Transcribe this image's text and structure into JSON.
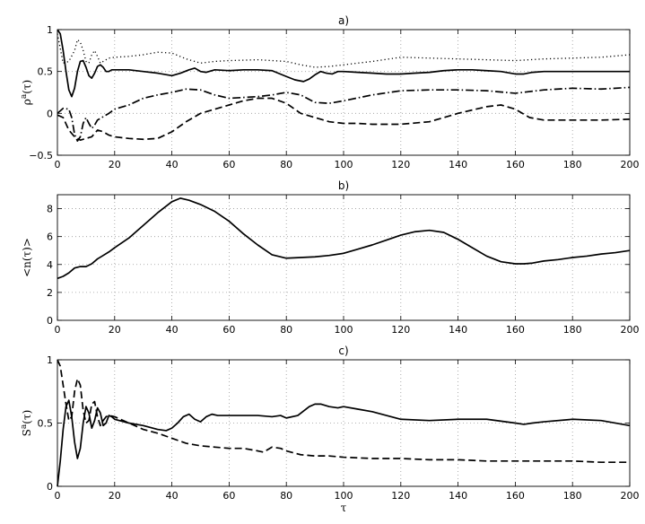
{
  "chart_data": [
    {
      "type": "line",
      "title": "a)",
      "xlabel": "",
      "ylabel_base": "ρ",
      "ylabel_sup": "a",
      "ylabel_tail": "(τ)",
      "xlim": [
        0,
        200
      ],
      "ylim": [
        -0.5,
        1
      ],
      "xticks": [
        0,
        20,
        40,
        60,
        80,
        100,
        120,
        140,
        160,
        180,
        200
      ],
      "yticks": [
        -0.5,
        0,
        0.5,
        1
      ],
      "ytick_labels": [
        "−0.5",
        "0",
        "0.5",
        "1"
      ],
      "grid": true,
      "series": [
        {
          "style": "solid",
          "x": [
            0,
            1,
            2,
            3,
            4,
            5,
            6,
            7,
            8,
            9,
            10,
            11,
            12,
            13,
            14,
            15,
            16,
            17,
            18,
            19,
            20,
            25,
            30,
            35,
            40,
            43,
            46,
            48,
            50,
            52,
            55,
            60,
            65,
            70,
            75,
            80,
            83,
            86,
            88,
            90,
            92,
            94,
            96,
            98,
            100,
            105,
            110,
            115,
            120,
            125,
            130,
            135,
            140,
            145,
            150,
            155,
            160,
            163,
            166,
            170,
            180,
            190,
            200
          ],
          "y": [
            1.0,
            0.95,
            0.75,
            0.5,
            0.28,
            0.2,
            0.3,
            0.5,
            0.62,
            0.63,
            0.55,
            0.45,
            0.42,
            0.48,
            0.56,
            0.58,
            0.55,
            0.5,
            0.5,
            0.52,
            0.52,
            0.52,
            0.5,
            0.48,
            0.45,
            0.48,
            0.52,
            0.54,
            0.5,
            0.49,
            0.52,
            0.51,
            0.52,
            0.52,
            0.51,
            0.44,
            0.4,
            0.38,
            0.41,
            0.46,
            0.5,
            0.48,
            0.47,
            0.5,
            0.5,
            0.49,
            0.48,
            0.47,
            0.47,
            0.48,
            0.49,
            0.51,
            0.52,
            0.52,
            0.51,
            0.5,
            0.47,
            0.47,
            0.49,
            0.5,
            0.5,
            0.5,
            0.5
          ]
        },
        {
          "style": "dotted",
          "x": [
            0,
            2,
            4,
            6,
            7,
            8,
            9,
            10,
            11,
            12,
            13,
            14,
            15,
            16,
            18,
            20,
            25,
            30,
            35,
            40,
            45,
            50,
            55,
            60,
            70,
            80,
            85,
            90,
            95,
            100,
            110,
            120,
            130,
            140,
            150,
            160,
            170,
            180,
            190,
            200
          ],
          "y": [
            0.95,
            0.6,
            0.62,
            0.75,
            0.88,
            0.85,
            0.75,
            0.62,
            0.6,
            0.7,
            0.75,
            0.68,
            0.6,
            0.62,
            0.66,
            0.67,
            0.68,
            0.7,
            0.73,
            0.72,
            0.65,
            0.6,
            0.62,
            0.63,
            0.64,
            0.62,
            0.58,
            0.55,
            0.56,
            0.58,
            0.62,
            0.67,
            0.66,
            0.65,
            0.64,
            0.63,
            0.65,
            0.66,
            0.67,
            0.7
          ]
        },
        {
          "style": "dashdot",
          "x": [
            0,
            2,
            4,
            5,
            6,
            7,
            8,
            9,
            10,
            11,
            12,
            13,
            14,
            15,
            16,
            18,
            20,
            25,
            30,
            35,
            40,
            45,
            50,
            55,
            60,
            65,
            70,
            75,
            80,
            85,
            90,
            95,
            100,
            110,
            120,
            130,
            140,
            150,
            160,
            170,
            180,
            190,
            200
          ],
          "y": [
            0.0,
            0.06,
            0.05,
            -0.05,
            -0.25,
            -0.33,
            -0.28,
            -0.12,
            -0.05,
            -0.12,
            -0.18,
            -0.14,
            -0.08,
            -0.06,
            -0.04,
            0.0,
            0.05,
            0.1,
            0.18,
            0.22,
            0.25,
            0.29,
            0.28,
            0.22,
            0.18,
            0.19,
            0.2,
            0.22,
            0.25,
            0.22,
            0.13,
            0.12,
            0.15,
            0.22,
            0.27,
            0.28,
            0.28,
            0.27,
            0.24,
            0.28,
            0.3,
            0.29,
            0.31
          ]
        },
        {
          "style": "dashed",
          "x": [
            0,
            2,
            4,
            6,
            8,
            10,
            12,
            14,
            16,
            18,
            20,
            25,
            30,
            35,
            40,
            45,
            50,
            55,
            60,
            65,
            70,
            75,
            80,
            85,
            90,
            95,
            100,
            105,
            110,
            120,
            130,
            140,
            150,
            155,
            160,
            165,
            170,
            180,
            190,
            200
          ],
          "y": [
            -0.02,
            -0.05,
            -0.2,
            -0.28,
            -0.32,
            -0.3,
            -0.28,
            -0.2,
            -0.22,
            -0.26,
            -0.28,
            -0.3,
            -0.31,
            -0.3,
            -0.22,
            -0.1,
            0.0,
            0.05,
            0.1,
            0.15,
            0.18,
            0.18,
            0.12,
            0.0,
            -0.05,
            -0.1,
            -0.12,
            -0.12,
            -0.13,
            -0.13,
            -0.1,
            0.0,
            0.08,
            0.1,
            0.05,
            -0.05,
            -0.08,
            -0.08,
            -0.08,
            -0.07
          ]
        }
      ]
    },
    {
      "type": "line",
      "title": "b)",
      "xlabel": "",
      "ylabel_base": "<n(τ)>",
      "ylabel_sup": "",
      "ylabel_tail": "",
      "xlim": [
        0,
        200
      ],
      "ylim": [
        0,
        9
      ],
      "xticks": [
        0,
        20,
        40,
        60,
        80,
        100,
        120,
        140,
        160,
        180,
        200
      ],
      "yticks": [
        0,
        2,
        4,
        6,
        8
      ],
      "ytick_labels": [
        "0",
        "2",
        "4",
        "6",
        "8"
      ],
      "grid": true,
      "series": [
        {
          "style": "solid",
          "x": [
            0,
            2,
            4,
            6,
            8,
            10,
            12,
            14,
            16,
            18,
            20,
            25,
            30,
            35,
            40,
            43,
            46,
            50,
            55,
            60,
            65,
            70,
            75,
            80,
            85,
            90,
            95,
            100,
            105,
            110,
            115,
            120,
            125,
            130,
            135,
            140,
            145,
            150,
            155,
            160,
            163,
            166,
            170,
            175,
            180,
            185,
            190,
            195,
            200
          ],
          "y": [
            3.0,
            3.15,
            3.4,
            3.75,
            3.85,
            3.85,
            4.05,
            4.4,
            4.65,
            4.9,
            5.2,
            5.9,
            6.8,
            7.7,
            8.5,
            8.75,
            8.6,
            8.3,
            7.8,
            7.1,
            6.2,
            5.4,
            4.7,
            4.45,
            4.5,
            4.55,
            4.65,
            4.8,
            5.1,
            5.4,
            5.75,
            6.1,
            6.35,
            6.45,
            6.3,
            5.8,
            5.2,
            4.6,
            4.2,
            4.05,
            4.05,
            4.1,
            4.25,
            4.35,
            4.5,
            4.6,
            4.75,
            4.85,
            5.0
          ]
        }
      ]
    },
    {
      "type": "line",
      "title": "c)",
      "xlabel": "τ",
      "ylabel_base": "S",
      "ylabel_sup": "a",
      "ylabel_tail": "(τ)",
      "xlim": [
        0,
        200
      ],
      "ylim": [
        0,
        1
      ],
      "xticks": [
        0,
        20,
        40,
        60,
        80,
        100,
        120,
        140,
        160,
        180,
        200
      ],
      "yticks": [
        0,
        0.5,
        1
      ],
      "ytick_labels": [
        "0",
        "0.5",
        "1"
      ],
      "grid": true,
      "series": [
        {
          "style": "solid",
          "x": [
            0,
            1,
            2,
            3,
            4,
            5,
            6,
            7,
            8,
            9,
            10,
            11,
            12,
            13,
            14,
            15,
            16,
            17,
            18,
            19,
            20,
            25,
            30,
            35,
            38,
            40,
            42,
            44,
            46,
            48,
            50,
            52,
            54,
            56,
            60,
            65,
            70,
            75,
            78,
            80,
            84,
            88,
            90,
            92,
            95,
            98,
            100,
            105,
            110,
            115,
            120,
            130,
            140,
            150,
            160,
            163,
            166,
            170,
            180,
            190,
            200
          ],
          "y": [
            0.0,
            0.2,
            0.45,
            0.63,
            0.68,
            0.55,
            0.35,
            0.22,
            0.3,
            0.5,
            0.63,
            0.58,
            0.46,
            0.52,
            0.62,
            0.58,
            0.48,
            0.5,
            0.56,
            0.55,
            0.53,
            0.5,
            0.48,
            0.45,
            0.44,
            0.46,
            0.5,
            0.55,
            0.57,
            0.53,
            0.51,
            0.55,
            0.57,
            0.56,
            0.56,
            0.56,
            0.56,
            0.55,
            0.56,
            0.54,
            0.56,
            0.63,
            0.65,
            0.65,
            0.63,
            0.62,
            0.63,
            0.61,
            0.59,
            0.56,
            0.53,
            0.52,
            0.53,
            0.53,
            0.5,
            0.49,
            0.5,
            0.51,
            0.53,
            0.52,
            0.48
          ]
        },
        {
          "style": "dashed",
          "x": [
            0,
            1,
            2,
            3,
            4,
            5,
            6,
            7,
            8,
            9,
            10,
            11,
            12,
            13,
            14,
            15,
            16,
            17,
            18,
            20,
            25,
            30,
            35,
            40,
            45,
            50,
            55,
            60,
            65,
            70,
            72,
            75,
            78,
            80,
            85,
            90,
            95,
            100,
            110,
            120,
            130,
            140,
            150,
            160,
            170,
            180,
            190,
            200
          ],
          "y": [
            1.0,
            0.95,
            0.8,
            0.65,
            0.52,
            0.55,
            0.75,
            0.85,
            0.8,
            0.6,
            0.5,
            0.52,
            0.65,
            0.67,
            0.55,
            0.48,
            0.52,
            0.55,
            0.56,
            0.55,
            0.5,
            0.45,
            0.42,
            0.38,
            0.34,
            0.32,
            0.31,
            0.3,
            0.3,
            0.28,
            0.27,
            0.31,
            0.3,
            0.28,
            0.25,
            0.24,
            0.24,
            0.23,
            0.22,
            0.22,
            0.21,
            0.21,
            0.2,
            0.2,
            0.2,
            0.2,
            0.19,
            0.19
          ]
        }
      ]
    }
  ]
}
